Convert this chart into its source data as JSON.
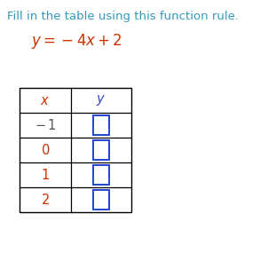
{
  "title": "Fill in the table using this function rule.",
  "title_color": "#3399bb",
  "equation_color": "#cc3300",
  "x_header_color": "#cc3300",
  "y_header_color": "#3344cc",
  "x_val_colors": [
    "#555555",
    "#cc3300",
    "#cc3300",
    "#cc3300"
  ],
  "box_color": "#2244cc",
  "table_line_color": "#000000",
  "bg_color": "#ffffff",
  "figsize": [
    3.02,
    2.94
  ],
  "dpi": 100
}
